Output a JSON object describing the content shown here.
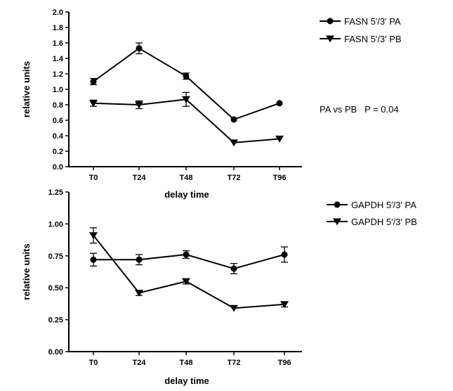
{
  "chart_data": [
    {
      "type": "line",
      "categories": [
        "T0",
        "T24",
        "T48",
        "T72",
        "T96"
      ],
      "xlabel": "delay time",
      "ylabel": "relative units",
      "ylim": [
        0,
        2.0
      ],
      "yticks": [
        "0.0",
        "0.2",
        "0.4",
        "0.6",
        "0.8",
        "1.0",
        "1.2",
        "1.4",
        "1.6",
        "1.8",
        "2.0"
      ],
      "legend_position": "right",
      "annotation": "PA vs PB   P = 0.04",
      "series": [
        {
          "name": "FASN 5'/3' PA",
          "marker": "circle",
          "values": [
            1.1,
            1.53,
            1.17,
            0.61,
            0.82
          ],
          "errors": [
            0.04,
            0.07,
            0.04,
            0.0,
            0.0
          ]
        },
        {
          "name": "FASN 5'/3' PB",
          "marker": "triangle-down",
          "values": [
            0.82,
            0.8,
            0.87,
            0.31,
            0.36
          ],
          "errors": [
            0.04,
            0.05,
            0.09,
            0.0,
            0.0
          ]
        }
      ]
    },
    {
      "type": "line",
      "categories": [
        "T0",
        "T24",
        "T48",
        "T72",
        "T96"
      ],
      "xlabel": "delay time",
      "ylabel": "relative units",
      "ylim": [
        0,
        1.25
      ],
      "yticks": [
        "0.00",
        "0.25",
        "0.50",
        "0.75",
        "1.00",
        "1.25"
      ],
      "legend_position": "right",
      "series": [
        {
          "name": "GAPDH 5'/3' PA",
          "marker": "circle",
          "values": [
            0.72,
            0.72,
            0.76,
            0.65,
            0.76
          ],
          "errors": [
            0.05,
            0.04,
            0.03,
            0.04,
            0.06
          ]
        },
        {
          "name": "GAPDH 5'/3' PB",
          "marker": "triangle-down",
          "values": [
            0.91,
            0.46,
            0.55,
            0.34,
            0.37
          ],
          "errors": [
            0.06,
            0.02,
            0.02,
            0.0,
            0.02
          ]
        }
      ]
    }
  ]
}
